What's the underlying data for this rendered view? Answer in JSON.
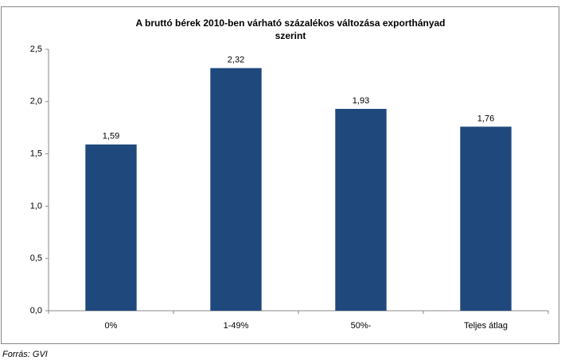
{
  "chart_data": {
    "type": "bar",
    "title": [
      "A bruttó bérek 2010-ben várható százalékos változása exporthányad",
      "szerint"
    ],
    "categories": [
      "0%",
      "1-49%",
      "50%-",
      "Teljes átlag"
    ],
    "values": [
      1.59,
      2.32,
      1.93,
      1.76
    ],
    "value_labels": [
      "1,59",
      "2,32",
      "1,93",
      "1,76"
    ],
    "color": "#1f497d",
    "ylim": [
      0,
      2.5
    ],
    "yticks": [
      {
        "value": 0,
        "label": "0,0"
      },
      {
        "value": 0.5,
        "label": "0,5"
      },
      {
        "value": 1,
        "label": "1,0"
      },
      {
        "value": 1.5,
        "label": "1,5"
      },
      {
        "value": 2,
        "label": "2,0"
      },
      {
        "value": 2.5,
        "label": "2,5"
      }
    ],
    "grid": false,
    "source": "Forrás: GVI"
  }
}
